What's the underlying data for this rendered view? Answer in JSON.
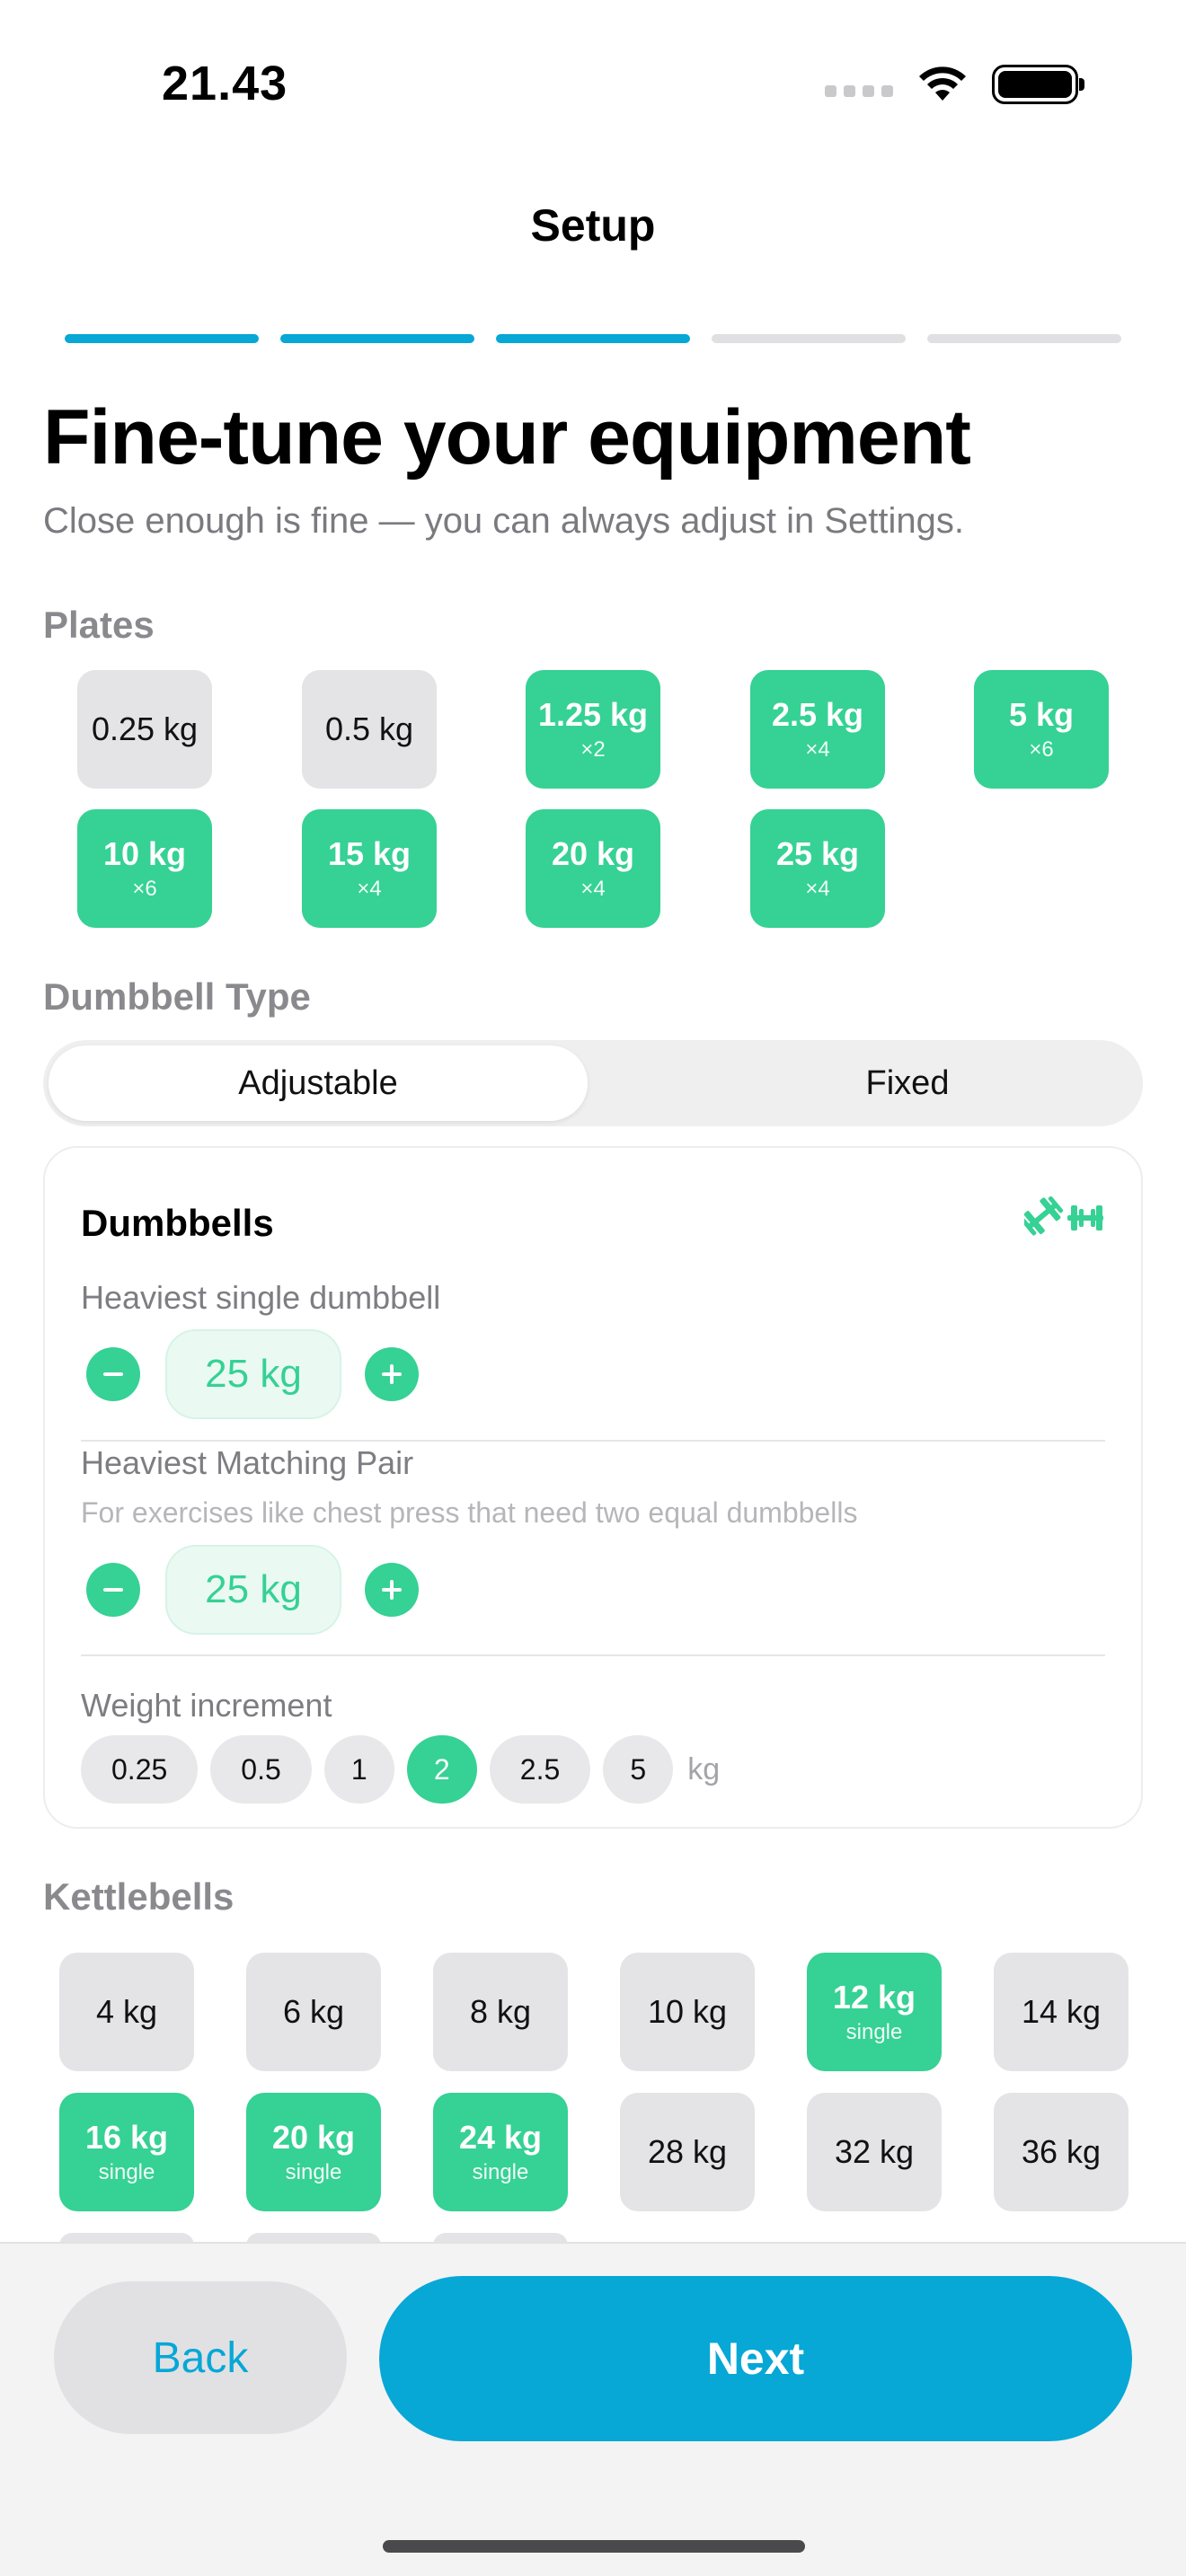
{
  "status_bar": {
    "time": "21.43"
  },
  "nav": {
    "title": "Setup"
  },
  "progress": {
    "steps_total": 5,
    "steps_done": 3
  },
  "heading": "Fine-tune your equipment",
  "subtitle": "Close enough is fine — you can always adjust in Settings.",
  "plates": {
    "label": "Plates",
    "items": [
      {
        "label": "0.25 kg",
        "sub": "",
        "selected": false
      },
      {
        "label": "0.5 kg",
        "sub": "",
        "selected": false
      },
      {
        "label": "1.25 kg",
        "sub": "×2",
        "selected": true
      },
      {
        "label": "2.5 kg",
        "sub": "×4",
        "selected": true
      },
      {
        "label": "5 kg",
        "sub": "×6",
        "selected": true
      },
      {
        "label": "10 kg",
        "sub": "×6",
        "selected": true
      },
      {
        "label": "15 kg",
        "sub": "×4",
        "selected": true
      },
      {
        "label": "20 kg",
        "sub": "×4",
        "selected": true
      },
      {
        "label": "25 kg",
        "sub": "×4",
        "selected": true
      }
    ]
  },
  "dumbbell_type": {
    "label": "Dumbbell Type",
    "options": [
      "Adjustable",
      "Fixed"
    ],
    "selected": "Adjustable"
  },
  "dumbbells": {
    "title": "Dumbbells",
    "icon": "dumbbell-icon",
    "heaviest_single": {
      "label": "Heaviest single dumbbell",
      "value": "25 kg"
    },
    "heaviest_pair": {
      "label": "Heaviest Matching Pair",
      "hint": "For exercises like chest press that need two equal dumbbells",
      "value": "25 kg"
    },
    "increment": {
      "label": "Weight increment",
      "options": [
        "0.25",
        "0.5",
        "1",
        "2",
        "2.5",
        "5"
      ],
      "selected": "2",
      "unit": "kg"
    }
  },
  "kettlebells": {
    "label": "Kettlebells",
    "items": [
      {
        "label": "4 kg",
        "sub": "",
        "selected": false
      },
      {
        "label": "6 kg",
        "sub": "",
        "selected": false
      },
      {
        "label": "8 kg",
        "sub": "",
        "selected": false
      },
      {
        "label": "10 kg",
        "sub": "",
        "selected": false
      },
      {
        "label": "12 kg",
        "sub": "single",
        "selected": true
      },
      {
        "label": "14 kg",
        "sub": "",
        "selected": false
      },
      {
        "label": "16 kg",
        "sub": "single",
        "selected": true
      },
      {
        "label": "20 kg",
        "sub": "single",
        "selected": true
      },
      {
        "label": "24 kg",
        "sub": "single",
        "selected": true
      },
      {
        "label": "28 kg",
        "sub": "",
        "selected": false
      },
      {
        "label": "32 kg",
        "sub": "",
        "selected": false
      },
      {
        "label": "36 kg",
        "sub": "",
        "selected": false
      }
    ]
  },
  "footer": {
    "back": "Back",
    "next": "Next"
  },
  "colors": {
    "accent": "#07a7d6",
    "green": "#36d194",
    "chip_bg": "#e4e4e7"
  }
}
